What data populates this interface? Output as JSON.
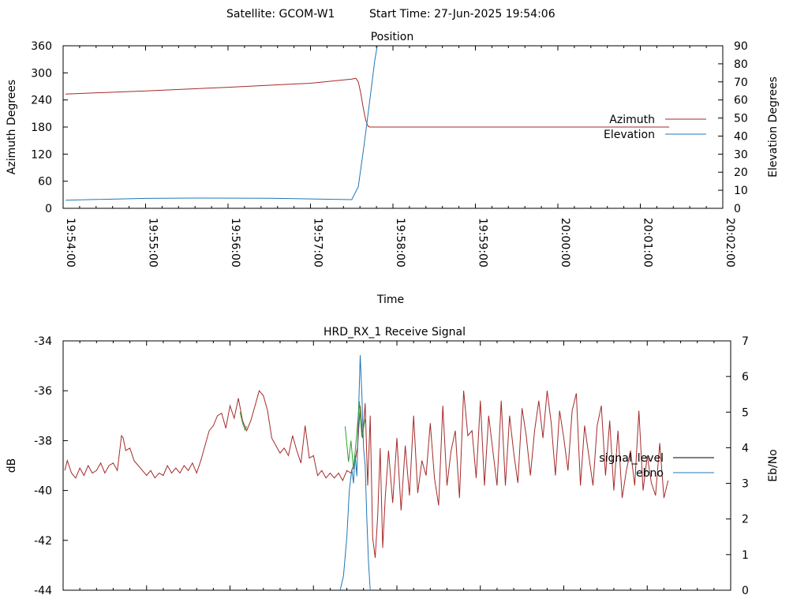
{
  "header": {
    "satellite": "Satellite: GCOM-W1",
    "start_time": "Start Time: 27-Jun-2025 19:54:06"
  },
  "chart_data": [
    {
      "type": "line",
      "title": "Position",
      "xlabel": "Time",
      "ylabel": "Azimuth Degrees",
      "y2label": "Elevation Degrees",
      "x_ticks": [
        "19:54:00",
        "19:55:00",
        "19:56:00",
        "19:57:00",
        "19:58:00",
        "19:59:00",
        "20:00:00",
        "20:01:00",
        "20:02:00"
      ],
      "xlim_min": [
        0,
        8
      ],
      "ylim": [
        0,
        360
      ],
      "y_ticks": [
        0,
        60,
        120,
        180,
        240,
        300,
        360
      ],
      "y2lim": [
        0,
        90
      ],
      "y2_ticks": [
        0,
        10,
        20,
        30,
        40,
        50,
        60,
        70,
        80,
        90
      ],
      "legend_position": "right",
      "grid": false,
      "series": [
        {
          "name": "Azimuth",
          "axis": "y",
          "color": "#a52a2a",
          "x_min": [
            0.03,
            1.0,
            2.0,
            3.0,
            3.5,
            3.55,
            3.58,
            3.61,
            3.64,
            3.67,
            3.7,
            3.72,
            4.0,
            5.0,
            6.0,
            7.0,
            7.35
          ],
          "y": [
            253,
            260,
            268,
            277,
            286,
            288,
            280,
            255,
            222,
            195,
            181,
            180,
            180,
            180,
            180,
            180,
            180
          ]
        },
        {
          "name": "Elevation",
          "axis": "y2",
          "color": "#1f77b4",
          "x_min": [
            0.03,
            1.0,
            1.6,
            2.5,
            3.0,
            3.5,
            3.58,
            3.65,
            3.72,
            3.78,
            3.81
          ],
          "y": [
            4.5,
            5.5,
            5.7,
            5.6,
            5.2,
            4.8,
            12,
            35,
            60,
            82,
            90
          ]
        }
      ]
    },
    {
      "type": "line",
      "title": "HRD_RX_1 Receive Signal",
      "ylabel": "dB",
      "y2label": "Eb/No",
      "ylim": [
        -44,
        -34
      ],
      "y_ticks": [
        -34,
        -36,
        -38,
        -40,
        -42,
        -44
      ],
      "y2lim": [
        0,
        7
      ],
      "y2_ticks": [
        0,
        1,
        2,
        3,
        4,
        5,
        6,
        7
      ],
      "xlim_min": [
        0,
        8
      ],
      "x_minor_ticks": 40,
      "legend_position": "right",
      "grid": false,
      "series": [
        {
          "name": "signal_level",
          "axis": "y",
          "color": "#a52a2a",
          "note_color": "legend line black",
          "x_min": [
            0.02,
            0.05,
            0.1,
            0.15,
            0.2,
            0.25,
            0.3,
            0.35,
            0.4,
            0.45,
            0.5,
            0.55,
            0.6,
            0.65,
            0.7,
            0.72,
            0.75,
            0.8,
            0.85,
            0.9,
            0.95,
            1.0,
            1.05,
            1.1,
            1.15,
            1.2,
            1.25,
            1.3,
            1.35,
            1.4,
            1.45,
            1.5,
            1.55,
            1.6,
            1.65,
            1.7,
            1.75,
            1.8,
            1.85,
            1.9,
            1.95,
            2.0,
            2.05,
            2.1,
            2.15,
            2.2,
            2.25,
            2.3,
            2.35,
            2.4,
            2.45,
            2.5,
            2.55,
            2.6,
            2.65,
            2.7,
            2.75,
            2.8,
            2.85,
            2.9,
            2.95,
            3.0,
            3.05,
            3.1,
            3.15,
            3.2,
            3.25,
            3.3,
            3.35,
            3.4,
            3.45,
            3.5,
            3.53,
            3.56,
            3.59,
            3.62,
            3.65,
            3.68,
            3.71,
            3.74,
            3.77,
            3.8,
            3.83,
            3.86,
            3.9,
            3.95,
            4.0,
            4.05,
            4.1,
            4.15,
            4.2,
            4.25,
            4.3,
            4.35,
            4.4,
            4.45,
            4.5,
            4.55,
            4.6,
            4.65,
            4.7,
            4.75,
            4.8,
            4.85,
            4.9,
            4.95,
            5.0,
            5.05,
            5.1,
            5.15,
            5.2,
            5.25,
            5.3,
            5.35,
            5.4,
            5.45,
            5.5,
            5.55,
            5.6,
            5.65,
            5.7,
            5.75,
            5.8,
            5.85,
            5.9,
            5.95,
            6.0,
            6.05,
            6.1,
            6.15,
            6.2,
            6.25,
            6.3,
            6.35,
            6.4,
            6.45,
            6.5,
            6.55,
            6.6,
            6.65,
            6.7,
            6.75,
            6.8,
            6.85,
            6.9,
            6.95,
            7.0,
            7.05,
            7.1,
            7.15,
            7.2,
            7.25
          ],
          "y": [
            -39.2,
            -38.8,
            -39.3,
            -39.5,
            -39.1,
            -39.4,
            -39.0,
            -39.3,
            -39.2,
            -38.9,
            -39.3,
            -39.0,
            -38.9,
            -39.2,
            -37.8,
            -37.9,
            -38.4,
            -38.3,
            -38.8,
            -39.0,
            -39.2,
            -39.4,
            -39.2,
            -39.5,
            -39.3,
            -39.4,
            -39.0,
            -39.3,
            -39.1,
            -39.3,
            -39.0,
            -39.2,
            -38.9,
            -39.3,
            -38.8,
            -38.2,
            -37.6,
            -37.4,
            -37.0,
            -36.9,
            -37.5,
            -36.6,
            -37.1,
            -36.3,
            -37.2,
            -37.6,
            -37.2,
            -36.6,
            -36.0,
            -36.2,
            -36.8,
            -37.9,
            -38.2,
            -38.5,
            -38.3,
            -38.6,
            -37.8,
            -38.4,
            -38.9,
            -37.4,
            -38.7,
            -38.6,
            -39.4,
            -39.2,
            -39.5,
            -39.3,
            -39.5,
            -39.3,
            -39.6,
            -39.2,
            -39.3,
            -38.8,
            -38.2,
            -36.6,
            -37.9,
            -36.5,
            -39.8,
            -37.0,
            -41.9,
            -42.7,
            -41.0,
            -38.3,
            -42.3,
            -40.3,
            -38.4,
            -40.5,
            -37.9,
            -40.8,
            -38.2,
            -40.2,
            -37.0,
            -40.1,
            -38.8,
            -39.4,
            -37.3,
            -39.5,
            -40.6,
            -36.6,
            -39.8,
            -38.4,
            -37.6,
            -40.3,
            -36.0,
            -37.8,
            -37.6,
            -39.5,
            -36.4,
            -39.8,
            -37.0,
            -38.4,
            -39.8,
            -36.4,
            -39.8,
            -37.0,
            -38.5,
            -39.7,
            -36.7,
            -37.8,
            -39.4,
            -37.6,
            -36.4,
            -37.9,
            -36.0,
            -37.3,
            -39.4,
            -36.8,
            -37.9,
            -39.2,
            -36.8,
            -36.1,
            -39.8,
            -37.4,
            -38.6,
            -39.8,
            -37.4,
            -36.6,
            -39.4,
            -37.2,
            -40.0,
            -37.6,
            -40.3,
            -39.2,
            -38.4,
            -39.8,
            -36.8,
            -40.0,
            -38.6,
            -39.7,
            -40.2,
            -38.1,
            -40.3,
            -39.6
          ]
        },
        {
          "name": "ebno",
          "axis": "y2",
          "color": "#1f77b4",
          "x_min": [
            3.32,
            3.36,
            3.4,
            3.43,
            3.46,
            3.48,
            3.5,
            3.52,
            3.54,
            3.56,
            3.58,
            3.6,
            3.62,
            3.64,
            3.66,
            3.68
          ],
          "y": [
            0,
            0.4,
            1.5,
            2.8,
            3.4,
            3.0,
            3.8,
            3.2,
            5.0,
            6.6,
            5.5,
            4.0,
            3.5,
            2.0,
            0.8,
            0
          ],
          "green_segments": [
            {
              "x_min": [
                2.12,
                2.15,
                2.18,
                2.2
              ],
              "y": [
                5.0,
                4.7,
                4.5,
                4.6
              ]
            },
            {
              "x_min": [
                3.38,
                3.42,
                3.45,
                3.48,
                3.52,
                3.55,
                3.58,
                3.62
              ],
              "y": [
                4.6,
                3.6,
                4.2,
                3.4,
                4.4,
                5.3,
                4.3,
                4.8
              ]
            }
          ]
        }
      ]
    }
  ]
}
